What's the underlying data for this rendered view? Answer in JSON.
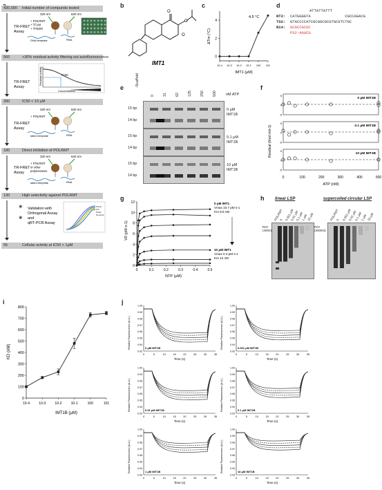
{
  "panel_a": {
    "label": "a",
    "steps": [
      {
        "count": "430,000",
        "text": "Initial number of compunds tested"
      },
      {
        "count": "560",
        "text": "+30% residual activity filtering out autofluorescence"
      },
      {
        "count": "280",
        "text": "IC50 < 10 μM"
      },
      {
        "count": "180",
        "text": "Direct inhibition of POLRMT"
      },
      {
        "count": "130",
        "text": "High selectivity against POLRMT"
      },
      {
        "count": "55",
        "text": "Cellular activity at IC50 < 1μM"
      }
    ],
    "assay_label": "TR-FRET\nAssay",
    "box1": {
      "nm320": "320 nm",
      "nm620": "620 nm",
      "reagents": "+ POLRMT\n+ TFAM\n+ TFB2M",
      "dna": "DNA template",
      "rna": "RNA"
    },
    "box2": {
      "ylabel": "Residual activity",
      "xlabel": "Concentration",
      "ic50": "IC50"
    },
    "box3": {
      "nm320": "320 nm",
      "nm620": "620 nm",
      "reagents": "+ POLRMT",
      "dna": "tailed template",
      "rna": "RNA"
    },
    "box4": {
      "nm320": "320 nm",
      "nm620": "620 nm",
      "reagents": "+ POLRMT\nor other\npolymerases",
      "dna": "tailed template",
      "rna": "RNA"
    },
    "box5": {
      "text": "Validation with\nOrthogonal Assay\nand\nqRT-PCR Assay",
      "legend": [
        "Primer",
        "Ctrl",
        "Probe",
        "No templ"
      ]
    }
  },
  "panel_b": {
    "label": "b",
    "compound": "IMT1"
  },
  "panel_c": {
    "label": "c",
    "annotation": "4.5 °C",
    "ylabel": "ΔTm (°C)",
    "xlabel": "IMT1 (μM)",
    "yticks": [
      "0",
      "2",
      "4"
    ],
    "xticks": [
      "10-4",
      "10-3",
      "10-2",
      "10-1",
      "100",
      "101"
    ],
    "chart_data": {
      "type": "line",
      "x": [
        0.0001,
        0.001,
        0.01,
        0.1,
        1,
        10
      ],
      "y": [
        0,
        0,
        0,
        0,
        2.6,
        4.5
      ],
      "ylim": [
        -0.5,
        5
      ]
    }
  },
  "panel_d": {
    "label": "d",
    "lines": [
      {
        "name": "",
        "seq": "ATTATTATTT"
      },
      {
        "name": "NT2:",
        "seq": "CATGGGGTA               CGCCAGACG"
      },
      {
        "name": "TS2:",
        "seq": "GTACCCCATCGCGGCGCGTGCGTCTGC"
      },
      {
        "name": "R14:",
        "seq": "GCGCCGCGC"
      },
      {
        "name": "",
        "seq": "P32-AGUCU"
      }
    ]
  },
  "panel_e": {
    "label": "e",
    "columns": [
      "-Scaffold",
      "0",
      "31",
      "62",
      "125",
      "250",
      "500"
    ],
    "unit": "nM ATP",
    "rows": [
      {
        "label": "0 μM\nIMT1B",
        "bp": [
          "15 bp",
          "14 bp"
        ]
      },
      {
        "label": "0.1 μM\nIMT1B",
        "bp": [
          "15 bp",
          "14 bp"
        ]
      },
      {
        "label": "10 μM\nIMT1B",
        "bp": [
          "15 bp",
          "14 bp"
        ]
      }
    ]
  },
  "panel_f": {
    "label": "f",
    "ylabel": "Residual (fmol min-1)",
    "xlabel": "ATP (nM)",
    "xticks": [
      "0",
      "100",
      "200",
      "300",
      "400",
      "500"
    ],
    "subpanels": [
      {
        "title": "0 μM IMT1B",
        "y": [
          0,
          1,
          -1,
          0,
          0,
          1,
          -0.5
        ]
      },
      {
        "title": "0.1 μM IMT1B",
        "y": [
          1,
          -2,
          0,
          0,
          -1,
          0,
          1
        ]
      },
      {
        "title": "10 μM IMT1B",
        "y": [
          0,
          1,
          1,
          0,
          -1,
          0,
          0
        ]
      }
    ],
    "x": [
      0,
      31,
      62,
      125,
      250,
      500,
      500
    ],
    "yticks": [
      "5",
      "0",
      "-5"
    ]
  },
  "panel_g": {
    "label": "g",
    "ylabel": "V0 (pM s-1)",
    "xlabel": "NTP (μM)",
    "yticks": [
      "0",
      "2",
      "4",
      "6",
      "8",
      "10",
      "12"
    ],
    "xticks": [
      "0",
      "0.1",
      "0.2",
      "0.3",
      "0.4",
      "0.5"
    ],
    "ann_top": [
      "0 μM IMT1",
      "Vmax 10.7 pM s-1",
      "Km 9.6 nM"
    ],
    "ann_bottom": [
      "10 μM IMT1",
      "Vmax 0.4 pM s-1",
      "Km 12 nM"
    ],
    "chart_data": {
      "type": "line",
      "x": [
        0,
        0.01,
        0.02,
        0.05,
        0.1,
        0.25,
        0.5
      ],
      "series": [
        {
          "values": [
            0,
            8.5,
            9.8,
            10.2,
            10.4,
            10.5,
            10.6
          ]
        },
        {
          "values": [
            0,
            7.5,
            8.5,
            9.2,
            9.5,
            9.6,
            9.4
          ]
        },
        {
          "values": [
            0,
            5.5,
            6.5,
            7.2,
            7.5,
            7.6,
            7.7
          ]
        },
        {
          "values": [
            0,
            3.5,
            4.5,
            5.2,
            5.5,
            5.6,
            5.6
          ]
        },
        {
          "values": [
            0,
            1.5,
            2.2,
            2.6,
            2.8,
            2.9,
            2.9
          ]
        },
        {
          "values": [
            0,
            0.5,
            0.8,
            1.0,
            1.1,
            1.1,
            1.1
          ]
        },
        {
          "values": [
            0,
            0.1,
            0.2,
            0.3,
            0.35,
            0.4,
            0.4
          ]
        }
      ],
      "ylim": [
        0,
        12
      ],
      "xlim": [
        0,
        0.5
      ]
    }
  },
  "panel_h": {
    "label": "h",
    "title_left": "linear LSP",
    "title_right": "supercoiled circular LSP",
    "lanes_left": [
      "POLRMT",
      "0",
      "0.001 μM",
      "0.01 μM",
      "0.1 μM",
      "1 μM",
      "10 μM"
    ],
    "lanes_right": [
      "POLRMT",
      "0",
      "0.001 μM",
      "0.01 μM",
      "0.1 μM",
      "1 μM",
      "10 μM"
    ],
    "ro_left": "R/O\n(400nt)",
    "ro_right": "R/O\n(3000nt)"
  },
  "panel_i": {
    "label": "i",
    "ylabel": "KD (nM)",
    "xlabel": "IMT1B (μM)",
    "yticks": [
      "0",
      "100",
      "200",
      "300",
      "400",
      "500",
      "600",
      "700",
      "800"
    ],
    "xticks": [
      "10-4",
      "10-3",
      "10-2",
      "10-1",
      "100",
      "101"
    ],
    "chart_data": {
      "type": "line",
      "x": [
        0.0001,
        0.001,
        0.01,
        0.1,
        1,
        10
      ],
      "y": [
        100,
        180,
        230,
        480,
        730,
        745
      ],
      "ylim": [
        0,
        800
      ]
    }
  },
  "panel_j": {
    "label": "j",
    "ylabel": "Relative Fluorescence (A.U.)",
    "xlabel": "Time (s)",
    "yticks": [
      "1.00",
      "0.99",
      "0.98",
      "0.97",
      "0.96",
      "0.95",
      "0.94",
      "0.93"
    ],
    "xticks": [
      "0",
      "5",
      "10",
      "15",
      "20",
      "25",
      "30",
      "35"
    ],
    "subpanels": [
      "0 μM IMT1B",
      "0.001 μM IMT1B",
      "0.01 μM IMT1B",
      "0.1 μM IMT1B",
      "1 μM IMT1B",
      "10 μM IMT1B"
    ]
  }
}
